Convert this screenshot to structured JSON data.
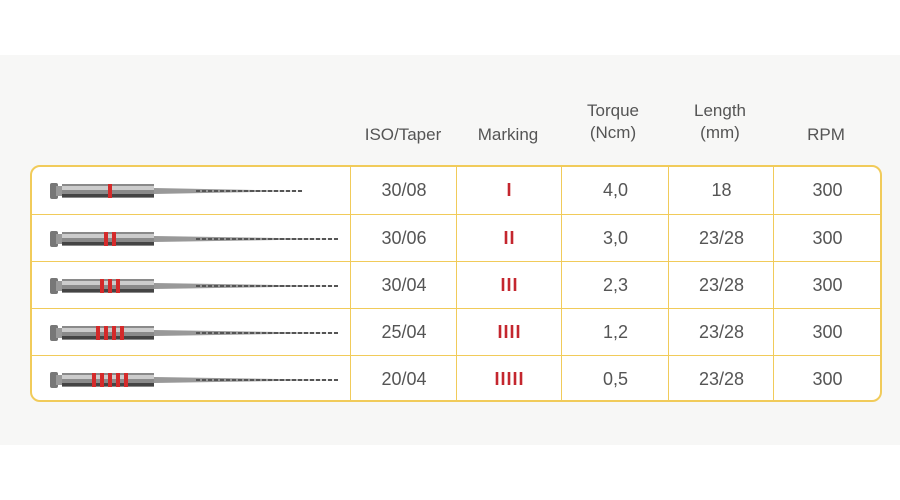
{
  "headers": {
    "iso": "ISO/Taper",
    "marking": "Marking",
    "torque": "Torque\n(Ncm)",
    "length": "Length\n(mm)",
    "rpm": "RPM"
  },
  "headers_lines": {
    "torque": [
      "Torque",
      "(Ncm)"
    ],
    "length": [
      "Length",
      "(mm)"
    ]
  },
  "colors": {
    "border": "#f1cb5a",
    "marking": "#c4262e",
    "text": "#555555"
  },
  "rows": [
    {
      "iso": "30/08",
      "marking": "I",
      "rings": 1,
      "torque": "4,0",
      "length": "18",
      "rpm": "300"
    },
    {
      "iso": "30/06",
      "marking": "II",
      "rings": 2,
      "torque": "3,0",
      "length": "23/28",
      "rpm": "300"
    },
    {
      "iso": "30/04",
      "marking": "III",
      "rings": 3,
      "torque": "2,3",
      "length": "23/28",
      "rpm": "300"
    },
    {
      "iso": "25/04",
      "marking": "IIII",
      "rings": 4,
      "torque": "1,2",
      "length": "23/28",
      "rpm": "300"
    },
    {
      "iso": "20/04",
      "marking": "IIIII",
      "rings": 5,
      "torque": "0,5",
      "length": "23/28",
      "rpm": "300"
    }
  ]
}
